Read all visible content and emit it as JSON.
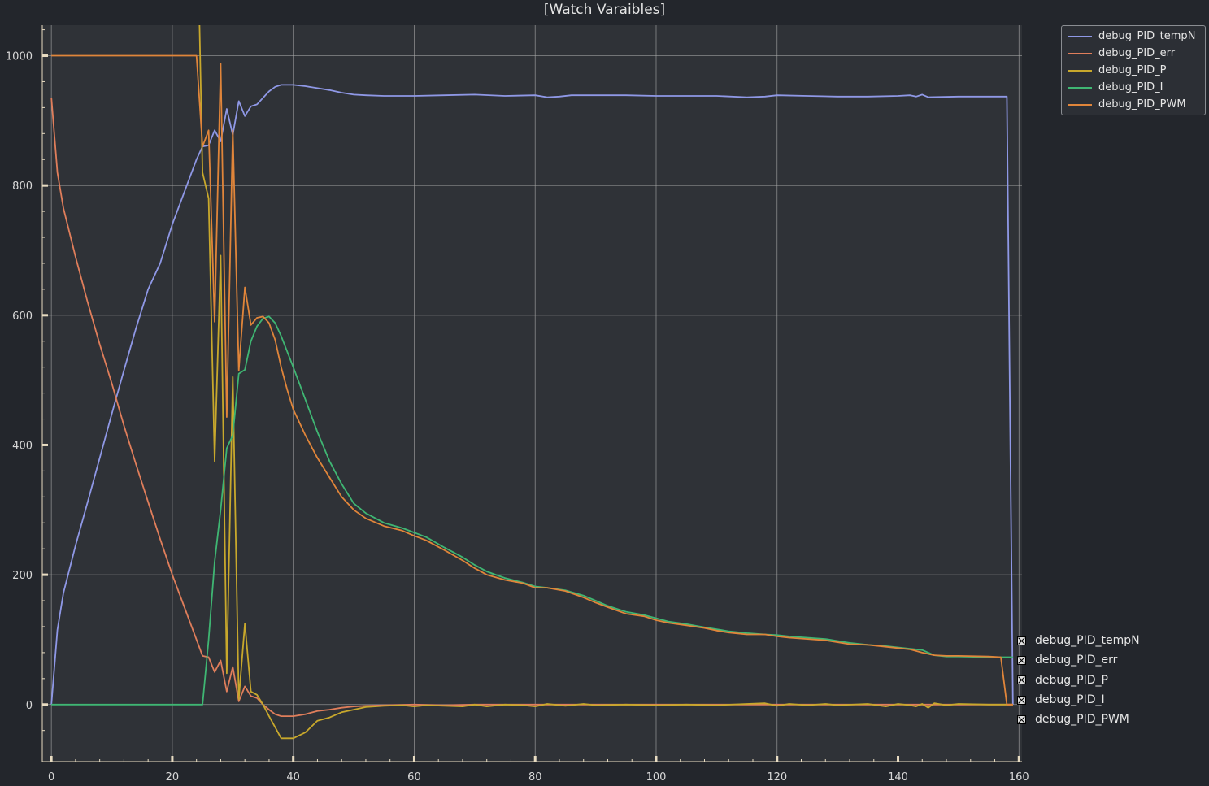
{
  "window": {
    "title": "[Watch Varaibles]"
  },
  "colors": {
    "background": "#23262c",
    "plot_background": "#2f3237",
    "grid": "#aaaaaa",
    "axis": "#e8dcc2"
  },
  "chart_data": {
    "type": "line",
    "title": "[Watch Varaibles]",
    "xlabel": "",
    "ylabel": "",
    "xlim": [
      -1.5,
      160.5
    ],
    "ylim": [
      -88,
      1047
    ],
    "xticks": [
      0,
      20,
      40,
      60,
      80,
      100,
      120,
      140,
      160
    ],
    "yticks": [
      0,
      200,
      400,
      600,
      800,
      1000
    ],
    "grid": true,
    "legend": "top-right",
    "series": [
      {
        "name": "debug_PID_tempN",
        "color": "#8f98e6",
        "points": [
          [
            0,
            0
          ],
          [
            1,
            115
          ],
          [
            2,
            172
          ],
          [
            4,
            245
          ],
          [
            6,
            312
          ],
          [
            8,
            380
          ],
          [
            10,
            448
          ],
          [
            12,
            515
          ],
          [
            14,
            580
          ],
          [
            16,
            640
          ],
          [
            18,
            680
          ],
          [
            20,
            740
          ],
          [
            22,
            790
          ],
          [
            24,
            840
          ],
          [
            25,
            860
          ],
          [
            26,
            862
          ],
          [
            27,
            885
          ],
          [
            28,
            868
          ],
          [
            29,
            918
          ],
          [
            30,
            878
          ],
          [
            31,
            930
          ],
          [
            32,
            907
          ],
          [
            33,
            922
          ],
          [
            34,
            925
          ],
          [
            35,
            935
          ],
          [
            36,
            945
          ],
          [
            37,
            952
          ],
          [
            38,
            955
          ],
          [
            40,
            955
          ],
          [
            42,
            953
          ],
          [
            44,
            950
          ],
          [
            46,
            947
          ],
          [
            48,
            943
          ],
          [
            50,
            940
          ],
          [
            52,
            939
          ],
          [
            55,
            938
          ],
          [
            60,
            938
          ],
          [
            65,
            939
          ],
          [
            70,
            940
          ],
          [
            75,
            938
          ],
          [
            80,
            939
          ],
          [
            82,
            936
          ],
          [
            84,
            937
          ],
          [
            86,
            939
          ],
          [
            90,
            939
          ],
          [
            95,
            939
          ],
          [
            100,
            938
          ],
          [
            105,
            938
          ],
          [
            110,
            938
          ],
          [
            115,
            936
          ],
          [
            118,
            937
          ],
          [
            120,
            939
          ],
          [
            125,
            938
          ],
          [
            130,
            937
          ],
          [
            135,
            937
          ],
          [
            140,
            938
          ],
          [
            142,
            939
          ],
          [
            143,
            937
          ],
          [
            144,
            940
          ],
          [
            145,
            936
          ],
          [
            150,
            937
          ],
          [
            155,
            937
          ],
          [
            158,
            937
          ],
          [
            159,
            0
          ]
        ]
      },
      {
        "name": "debug_PID_err",
        "color": "#e07e5b",
        "points": [
          [
            0,
            935
          ],
          [
            1,
            820
          ],
          [
            2,
            765
          ],
          [
            4,
            690
          ],
          [
            6,
            620
          ],
          [
            8,
            555
          ],
          [
            10,
            495
          ],
          [
            12,
            430
          ],
          [
            14,
            370
          ],
          [
            16,
            312
          ],
          [
            18,
            255
          ],
          [
            20,
            200
          ],
          [
            22,
            150
          ],
          [
            24,
            100
          ],
          [
            25,
            75
          ],
          [
            26,
            73
          ],
          [
            27,
            50
          ],
          [
            28,
            68
          ],
          [
            29,
            20
          ],
          [
            30,
            58
          ],
          [
            31,
            5
          ],
          [
            32,
            28
          ],
          [
            33,
            13
          ],
          [
            34,
            10
          ],
          [
            35,
            0
          ],
          [
            36,
            -8
          ],
          [
            37,
            -15
          ],
          [
            38,
            -18
          ],
          [
            40,
            -18
          ],
          [
            42,
            -15
          ],
          [
            44,
            -10
          ],
          [
            46,
            -8
          ],
          [
            48,
            -5
          ],
          [
            50,
            -3
          ],
          [
            52,
            -2
          ],
          [
            55,
            -1
          ],
          [
            60,
            0
          ],
          [
            65,
            -1
          ],
          [
            70,
            0
          ],
          [
            75,
            0
          ],
          [
            80,
            0
          ],
          [
            85,
            0
          ],
          [
            90,
            0
          ],
          [
            95,
            0
          ],
          [
            100,
            0
          ],
          [
            110,
            0
          ],
          [
            120,
            0
          ],
          [
            130,
            0
          ],
          [
            140,
            0
          ],
          [
            150,
            0
          ],
          [
            159,
            0
          ]
        ]
      },
      {
        "name": "debug_PID_P",
        "color": "#c8a82c",
        "points": [
          [
            24.5,
            1047
          ],
          [
            25,
            820
          ],
          [
            26,
            780
          ],
          [
            27,
            375
          ],
          [
            28,
            692
          ],
          [
            29,
            48
          ],
          [
            30,
            505
          ],
          [
            31,
            8
          ],
          [
            32,
            125
          ],
          [
            33,
            20
          ],
          [
            34,
            15
          ],
          [
            35,
            0
          ],
          [
            36,
            -18
          ],
          [
            37,
            -35
          ],
          [
            38,
            -52
          ],
          [
            40,
            -52
          ],
          [
            42,
            -43
          ],
          [
            44,
            -25
          ],
          [
            46,
            -20
          ],
          [
            48,
            -12
          ],
          [
            50,
            -8
          ],
          [
            52,
            -4
          ],
          [
            55,
            -2
          ],
          [
            58,
            -1
          ],
          [
            60,
            -3
          ],
          [
            62,
            -1
          ],
          [
            65,
            -2
          ],
          [
            68,
            -3
          ],
          [
            70,
            0
          ],
          [
            72,
            -3
          ],
          [
            75,
            0
          ],
          [
            78,
            -1
          ],
          [
            80,
            -3
          ],
          [
            82,
            1
          ],
          [
            85,
            -2
          ],
          [
            88,
            1
          ],
          [
            90,
            -1
          ],
          [
            95,
            0
          ],
          [
            100,
            -1
          ],
          [
            105,
            0
          ],
          [
            110,
            -1
          ],
          [
            115,
            1
          ],
          [
            118,
            2
          ],
          [
            120,
            -2
          ],
          [
            122,
            1
          ],
          [
            125,
            -1
          ],
          [
            128,
            1
          ],
          [
            130,
            -1
          ],
          [
            135,
            1
          ],
          [
            138,
            -3
          ],
          [
            140,
            1
          ],
          [
            142,
            -1
          ],
          [
            143,
            -3
          ],
          [
            144,
            1
          ],
          [
            145,
            -5
          ],
          [
            146,
            2
          ],
          [
            148,
            -1
          ],
          [
            150,
            1
          ],
          [
            155,
            0
          ],
          [
            159,
            0
          ]
        ]
      },
      {
        "name": "debug_PID_I",
        "color": "#3fb673",
        "points": [
          [
            0,
            0
          ],
          [
            5,
            0
          ],
          [
            10,
            0
          ],
          [
            15,
            0
          ],
          [
            20,
            0
          ],
          [
            23,
            0
          ],
          [
            25,
            0
          ],
          [
            26,
            100
          ],
          [
            27,
            220
          ],
          [
            28,
            300
          ],
          [
            29,
            395
          ],
          [
            30,
            415
          ],
          [
            31,
            510
          ],
          [
            32,
            516
          ],
          [
            33,
            560
          ],
          [
            34,
            583
          ],
          [
            35,
            595
          ],
          [
            36,
            598
          ],
          [
            37,
            588
          ],
          [
            38,
            568
          ],
          [
            40,
            520
          ],
          [
            42,
            470
          ],
          [
            44,
            420
          ],
          [
            46,
            375
          ],
          [
            48,
            340
          ],
          [
            50,
            310
          ],
          [
            52,
            295
          ],
          [
            55,
            280
          ],
          [
            58,
            272
          ],
          [
            60,
            265
          ],
          [
            62,
            258
          ],
          [
            65,
            242
          ],
          [
            68,
            227
          ],
          [
            70,
            215
          ],
          [
            72,
            205
          ],
          [
            75,
            195
          ],
          [
            78,
            188
          ],
          [
            80,
            182
          ],
          [
            82,
            180
          ],
          [
            85,
            176
          ],
          [
            88,
            168
          ],
          [
            90,
            160
          ],
          [
            92,
            152
          ],
          [
            95,
            143
          ],
          [
            98,
            138
          ],
          [
            100,
            133
          ],
          [
            102,
            128
          ],
          [
            105,
            124
          ],
          [
            108,
            119
          ],
          [
            110,
            116
          ],
          [
            112,
            113
          ],
          [
            115,
            110
          ],
          [
            118,
            108
          ],
          [
            120,
            107
          ],
          [
            122,
            105
          ],
          [
            125,
            103
          ],
          [
            128,
            101
          ],
          [
            130,
            98
          ],
          [
            132,
            95
          ],
          [
            135,
            92
          ],
          [
            138,
            90
          ],
          [
            140,
            88
          ],
          [
            142,
            86
          ],
          [
            144,
            84
          ],
          [
            145,
            80
          ],
          [
            146,
            76
          ],
          [
            148,
            74
          ],
          [
            150,
            74
          ],
          [
            155,
            73
          ],
          [
            158,
            73
          ],
          [
            159,
            73
          ]
        ]
      },
      {
        "name": "debug_PID_PWM",
        "color": "#e0853a",
        "points": [
          [
            0,
            1000
          ],
          [
            5,
            1000
          ],
          [
            10,
            1000
          ],
          [
            15,
            1000
          ],
          [
            20,
            1000
          ],
          [
            23,
            1000
          ],
          [
            24,
            1000
          ],
          [
            25,
            860
          ],
          [
            26,
            885
          ],
          [
            27,
            590
          ],
          [
            28,
            988
          ],
          [
            29,
            443
          ],
          [
            30,
            885
          ],
          [
            31,
            515
          ],
          [
            32,
            643
          ],
          [
            33,
            585
          ],
          [
            34,
            596
          ],
          [
            35,
            598
          ],
          [
            36,
            588
          ],
          [
            37,
            562
          ],
          [
            38,
            520
          ],
          [
            39,
            485
          ],
          [
            40,
            455
          ],
          [
            42,
            415
          ],
          [
            44,
            380
          ],
          [
            46,
            350
          ],
          [
            48,
            320
          ],
          [
            50,
            300
          ],
          [
            52,
            287
          ],
          [
            55,
            275
          ],
          [
            58,
            268
          ],
          [
            60,
            260
          ],
          [
            62,
            253
          ],
          [
            65,
            238
          ],
          [
            68,
            222
          ],
          [
            70,
            210
          ],
          [
            72,
            200
          ],
          [
            75,
            192
          ],
          [
            78,
            187
          ],
          [
            80,
            180
          ],
          [
            82,
            180
          ],
          [
            85,
            175
          ],
          [
            88,
            165
          ],
          [
            90,
            157
          ],
          [
            92,
            150
          ],
          [
            95,
            140
          ],
          [
            98,
            136
          ],
          [
            100,
            130
          ],
          [
            102,
            126
          ],
          [
            105,
            122
          ],
          [
            108,
            118
          ],
          [
            110,
            114
          ],
          [
            112,
            111
          ],
          [
            115,
            108
          ],
          [
            118,
            108
          ],
          [
            120,
            105
          ],
          [
            122,
            103
          ],
          [
            125,
            101
          ],
          [
            128,
            99
          ],
          [
            130,
            96
          ],
          [
            132,
            93
          ],
          [
            135,
            92
          ],
          [
            138,
            89
          ],
          [
            140,
            87
          ],
          [
            142,
            85
          ],
          [
            144,
            80
          ],
          [
            146,
            76
          ],
          [
            148,
            75
          ],
          [
            150,
            75
          ],
          [
            155,
            74
          ],
          [
            157,
            73
          ],
          [
            158,
            0
          ],
          [
            159,
            0
          ]
        ]
      }
    ]
  },
  "legend_items": [
    {
      "label": "debug_PID_tempN"
    },
    {
      "label": "debug_PID_err"
    },
    {
      "label": "debug_PID_P"
    },
    {
      "label": "debug_PID_I"
    },
    {
      "label": "debug_PID_PWM"
    }
  ],
  "toggles": [
    {
      "label": "debug_PID_tempN"
    },
    {
      "label": "debug_PID_err"
    },
    {
      "label": "debug_PID_P"
    },
    {
      "label": "debug_PID_I"
    },
    {
      "label": "debug_PID_PWM"
    }
  ]
}
